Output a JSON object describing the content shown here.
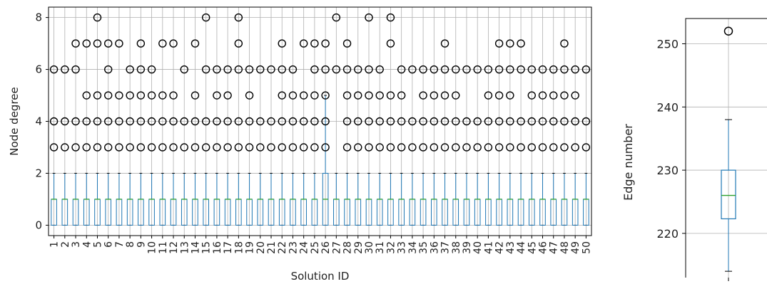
{
  "chart_data": [
    {
      "type": "box",
      "xlabel": "Solution ID",
      "ylabel": "Node degree",
      "ylim": [
        -0.4,
        8.4
      ],
      "yticks": [
        0,
        2,
        4,
        6,
        8
      ],
      "categories": [
        "1",
        "2",
        "3",
        "4",
        "5",
        "6",
        "7",
        "8",
        "9",
        "10",
        "11",
        "12",
        "13",
        "14",
        "15",
        "16",
        "17",
        "18",
        "19",
        "20",
        "21",
        "22",
        "23",
        "24",
        "25",
        "26",
        "27",
        "28",
        "29",
        "30",
        "31",
        "32",
        "33",
        "34",
        "35",
        "36",
        "37",
        "38",
        "39",
        "40",
        "41",
        "42",
        "43",
        "44",
        "45",
        "46",
        "47",
        "48",
        "49",
        "50"
      ],
      "box_stats": {
        "q1": 0,
        "median": 1,
        "q3": 1,
        "whisker_low": 0,
        "whisker_high": 2
      },
      "box_stats_26": {
        "q1": 0,
        "median": 1,
        "q3": 2,
        "whisker_low": 0,
        "whisker_high": 5
      },
      "outliers": [
        [
          3,
          4,
          6
        ],
        [
          3,
          4,
          6
        ],
        [
          3,
          4,
          6,
          7
        ],
        [
          3,
          4,
          5,
          7
        ],
        [
          3,
          4,
          5,
          7,
          8
        ],
        [
          3,
          4,
          5,
          6,
          7
        ],
        [
          3,
          4,
          5,
          7
        ],
        [
          3,
          4,
          5,
          6
        ],
        [
          3,
          4,
          5,
          6,
          7
        ],
        [
          3,
          4,
          5,
          6
        ],
        [
          3,
          4,
          5,
          7
        ],
        [
          3,
          4,
          5,
          7
        ],
        [
          3,
          4,
          6
        ],
        [
          3,
          4,
          5,
          7
        ],
        [
          3,
          4,
          6,
          8
        ],
        [
          3,
          4,
          5,
          6
        ],
        [
          3,
          4,
          5,
          6
        ],
        [
          3,
          4,
          6,
          7,
          8
        ],
        [
          3,
          4,
          5,
          6
        ],
        [
          3,
          4,
          6
        ],
        [
          3,
          4,
          6
        ],
        [
          3,
          4,
          5,
          6,
          7
        ],
        [
          3,
          4,
          5,
          6
        ],
        [
          3,
          4,
          5,
          7
        ],
        [
          3,
          4,
          5,
          6,
          7
        ],
        [
          3,
          4,
          5,
          6,
          7
        ],
        [
          6,
          8
        ],
        [
          3,
          4,
          5,
          6,
          7
        ],
        [
          3,
          4,
          5,
          6
        ],
        [
          3,
          4,
          5,
          6,
          8
        ],
        [
          3,
          4,
          5,
          6
        ],
        [
          3,
          4,
          5,
          7,
          8
        ],
        [
          3,
          4,
          5,
          6
        ],
        [
          3,
          4,
          6
        ],
        [
          3,
          4,
          5,
          6
        ],
        [
          3,
          4,
          5,
          6
        ],
        [
          3,
          4,
          5,
          6,
          7
        ],
        [
          3,
          4,
          5,
          6
        ],
        [
          3,
          4,
          6
        ],
        [
          3,
          4,
          6
        ],
        [
          3,
          4,
          5,
          6
        ],
        [
          3,
          4,
          5,
          6,
          7
        ],
        [
          3,
          4,
          5,
          6,
          7
        ],
        [
          3,
          4,
          6,
          7
        ],
        [
          3,
          4,
          5,
          6
        ],
        [
          3,
          4,
          5,
          6
        ],
        [
          3,
          4,
          5,
          6
        ],
        [
          3,
          4,
          5,
          6,
          7
        ],
        [
          3,
          4,
          5,
          6
        ],
        [
          3,
          4,
          6
        ]
      ],
      "grid": true
    },
    {
      "type": "box",
      "xlabel": "",
      "ylabel": "Edge number",
      "ylim": [
        213,
        254
      ],
      "yticks": [
        220,
        230,
        240,
        250
      ],
      "box_stats": {
        "q1": 222.3,
        "median": 226,
        "q3": 230,
        "whisker_low": 214,
        "whisker_high": 238
      },
      "outliers": [
        252
      ],
      "grid": true
    }
  ],
  "colors": {
    "box": "#1f77b4",
    "median": "#2ca02c",
    "grid": "#b0b0b0",
    "flier": "#000000"
  }
}
